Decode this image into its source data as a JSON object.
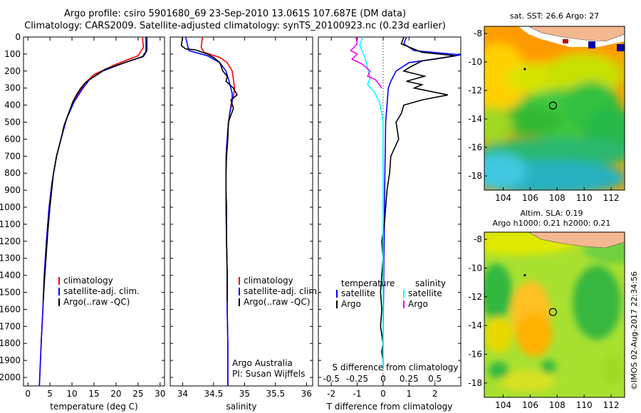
{
  "header": {
    "title_line1": "Argo profile: csiro 5901680_69 23-Sep-2010 13.061S 107.687E (DM data)",
    "title_line2": "Climatology: CARS2009. Satellite-adjusted climatology: synTS_20100923.nc (0.23d earlier)"
  },
  "colors": {
    "climatology": "#ff0000",
    "satellite": "#0000ff",
    "argo": "#000000",
    "argo_salinity": "#ff00ff",
    "satellite_salinity": "#00ffff"
  },
  "watermark": "©IMOS 02-Aug-2017 22:34:56",
  "chart_data": [
    {
      "type": "line",
      "id": "temperature",
      "xlabel": "temperature (deg C)",
      "xlim": [
        -1,
        31
      ],
      "ylim": [
        2050,
        0
      ],
      "xticks": [
        0,
        5,
        10,
        15,
        20,
        25,
        30
      ],
      "yticks": [
        0,
        100,
        200,
        300,
        400,
        500,
        600,
        700,
        800,
        900,
        1000,
        1100,
        1200,
        1300,
        1400,
        1500,
        1600,
        1700,
        1800,
        1900,
        2000
      ],
      "legend": [
        "climatology",
        "satellite-adj. clim.",
        "Argo(..raw -QC)"
      ],
      "series": [
        {
          "name": "climatology",
          "color": "#ff0000",
          "points": [
            [
              26.0,
              0
            ],
            [
              26.2,
              60
            ],
            [
              25.0,
              110
            ],
            [
              20.0,
              160
            ],
            [
              15.0,
              220
            ],
            [
              13.0,
              270
            ],
            [
              11.5,
              330
            ],
            [
              10.0,
              400
            ],
            [
              8.5,
              500
            ],
            [
              7.5,
              600
            ],
            [
              6.5,
              700
            ],
            [
              5.5,
              850
            ],
            [
              4.8,
              1000
            ],
            [
              4.2,
              1200
            ],
            [
              3.7,
              1400
            ],
            [
              3.4,
              1600
            ],
            [
              3.0,
              1800
            ],
            [
              2.6,
              2050
            ]
          ]
        },
        {
          "name": "satellite-adj. clim.",
          "color": "#0000ff",
          "points": [
            [
              27.0,
              0
            ],
            [
              27.0,
              80
            ],
            [
              26.2,
              115
            ],
            [
              22.0,
              150
            ],
            [
              17.0,
              200
            ],
            [
              14.0,
              250
            ],
            [
              12.5,
              300
            ],
            [
              10.5,
              380
            ],
            [
              8.8,
              480
            ],
            [
              7.5,
              600
            ],
            [
              6.5,
              700
            ],
            [
              5.5,
              850
            ],
            [
              4.8,
              1000
            ],
            [
              4.2,
              1200
            ],
            [
              3.7,
              1400
            ],
            [
              3.4,
              1600
            ],
            [
              3.0,
              1800
            ],
            [
              2.6,
              2050
            ]
          ]
        },
        {
          "name": "Argo(..raw -QC)",
          "color": "#000000",
          "points": [
            [
              26.8,
              0
            ],
            [
              26.8,
              85
            ],
            [
              26.0,
              115
            ],
            [
              22.0,
              150
            ],
            [
              17.5,
              190
            ],
            [
              14.5,
              240
            ],
            [
              13.0,
              270
            ],
            [
              12.0,
              300
            ],
            [
              11.0,
              340
            ],
            [
              10.2,
              380
            ],
            [
              9.2,
              450
            ],
            [
              8.2,
              520
            ],
            [
              7.5,
              600
            ],
            [
              6.5,
              700
            ],
            [
              5.8,
              800
            ],
            [
              5.4,
              900
            ],
            [
              5.0,
              1000
            ],
            [
              4.5,
              1150
            ],
            [
              4.1,
              1300
            ],
            [
              3.7,
              1450
            ],
            [
              3.5,
              1550
            ]
          ]
        }
      ]
    },
    {
      "type": "line",
      "id": "salinity",
      "xlabel": "salinity",
      "xlim": [
        33.8,
        36.1
      ],
      "ylim": [
        2050,
        0
      ],
      "xticks": [
        34,
        34.5,
        35,
        35.5,
        36
      ],
      "legend": [
        "climatology",
        "satellite-adj. clim.",
        "Argo(..raw -QC)"
      ],
      "annotation": [
        "Argo Australia",
        "PI: Susan Wijffels"
      ],
      "series": [
        {
          "name": "climatology",
          "color": "#ff0000",
          "points": [
            [
              34.32,
              0
            ],
            [
              34.3,
              60
            ],
            [
              34.35,
              90
            ],
            [
              34.6,
              120
            ],
            [
              34.72,
              150
            ],
            [
              34.8,
              200
            ],
            [
              34.82,
              250
            ],
            [
              34.84,
              300
            ],
            [
              34.82,
              350
            ],
            [
              34.78,
              400
            ],
            [
              34.74,
              500
            ],
            [
              34.72,
              600
            ],
            [
              34.7,
              700
            ],
            [
              34.7,
              800
            ],
            [
              34.7,
              1000
            ],
            [
              34.71,
              1200
            ],
            [
              34.72,
              1400
            ],
            [
              34.72,
              1600
            ],
            [
              34.73,
              1800
            ],
            [
              34.73,
              2050
            ]
          ]
        },
        {
          "name": "satellite-adj. clim.",
          "color": "#0000ff",
          "points": [
            [
              34.05,
              0
            ],
            [
              34.1,
              80
            ],
            [
              34.4,
              110
            ],
            [
              34.6,
              150
            ],
            [
              34.7,
              200
            ],
            [
              34.75,
              260
            ],
            [
              34.8,
              330
            ],
            [
              34.8,
              380
            ],
            [
              34.76,
              450
            ],
            [
              34.73,
              550
            ],
            [
              34.71,
              650
            ],
            [
              34.7,
              800
            ],
            [
              34.7,
              1000
            ],
            [
              34.71,
              1200
            ],
            [
              34.72,
              1400
            ],
            [
              34.72,
              1600
            ],
            [
              34.73,
              1800
            ],
            [
              34.73,
              2050
            ]
          ]
        },
        {
          "name": "Argo(..raw -QC)",
          "color": "#000000",
          "points": [
            [
              34.0,
              0
            ],
            [
              33.98,
              50
            ],
            [
              34.05,
              70
            ],
            [
              34.2,
              75
            ],
            [
              34.4,
              100
            ],
            [
              34.5,
              120
            ],
            [
              34.6,
              150
            ],
            [
              34.65,
              200
            ],
            [
              34.72,
              230
            ],
            [
              34.7,
              260
            ],
            [
              34.82,
              300
            ],
            [
              34.88,
              340
            ],
            [
              34.78,
              370
            ],
            [
              34.82,
              420
            ],
            [
              34.74,
              500
            ],
            [
              34.73,
              600
            ],
            [
              34.71,
              700
            ],
            [
              34.7,
              800
            ],
            [
              34.7,
              900
            ],
            [
              34.71,
              1000
            ],
            [
              34.71,
              1200
            ],
            [
              34.72,
              1400
            ],
            [
              34.72,
              1550
            ]
          ]
        }
      ]
    },
    {
      "type": "line",
      "id": "difference",
      "xlabel": "T difference from climatology",
      "xlabel_top": "S difference from climatology",
      "xlim": [
        -2.5,
        3.0
      ],
      "ylim": [
        2050,
        0
      ],
      "xticks": [
        -2,
        -1,
        0,
        1,
        2
      ],
      "xticks_salinity": [
        -0.5,
        -0.25,
        0,
        0.25,
        0.5
      ],
      "legend_headers": [
        "temperature",
        "salinity"
      ],
      "legend": [
        "satellite",
        "Argo",
        "satellite",
        "Argo"
      ],
      "series": [
        {
          "name": "satellite",
          "color": "#0000ff",
          "points": [
            [
              0.9,
              0
            ],
            [
              0.8,
              40
            ],
            [
              1.2,
              80
            ],
            [
              3.0,
              105
            ],
            [
              2.2,
              125
            ],
            [
              1.0,
              150
            ],
            [
              0.5,
              200
            ],
            [
              0.3,
              260
            ],
            [
              0.2,
              300
            ],
            [
              0.15,
              400
            ],
            [
              0.1,
              500
            ],
            [
              0.08,
              700
            ],
            [
              0.06,
              900
            ],
            [
              0.05,
              1100
            ],
            [
              0.03,
              1300
            ],
            [
              0.02,
              1500
            ],
            [
              0.0,
              1700
            ],
            [
              0.0,
              1950
            ]
          ]
        },
        {
          "name": "Argo",
          "color": "#000000",
          "points": [
            [
              0.8,
              0
            ],
            [
              0.7,
              40
            ],
            [
              1.5,
              90
            ],
            [
              2.8,
              110
            ],
            [
              1.5,
              140
            ],
            [
              1.0,
              180
            ],
            [
              0.8,
              200
            ],
            [
              1.6,
              230
            ],
            [
              0.9,
              260
            ],
            [
              1.5,
              280
            ],
            [
              1.2,
              300
            ],
            [
              2.5,
              340
            ],
            [
              1.5,
              370
            ],
            [
              0.8,
              400
            ],
            [
              0.7,
              450
            ],
            [
              0.5,
              500
            ],
            [
              0.6,
              600
            ],
            [
              0.3,
              700
            ],
            [
              0.25,
              800
            ],
            [
              0.15,
              900
            ],
            [
              0.1,
              1000
            ],
            [
              0.05,
              1100
            ],
            [
              -0.05,
              1200
            ],
            [
              0.0,
              1300
            ],
            [
              -0.05,
              1400
            ],
            [
              -0.1,
              1500
            ],
            [
              -0.05,
              1600
            ],
            [
              -0.1,
              1700
            ],
            [
              0.0,
              1800
            ],
            [
              -0.05,
              1850
            ],
            [
              0.0,
              1900
            ]
          ]
        },
        {
          "name": "satellite",
          "color": "#00ffff",
          "points": [
            [
              -0.8,
              0
            ],
            [
              -0.9,
              50
            ],
            [
              -0.7,
              120
            ],
            [
              -0.6,
              180
            ],
            [
              -0.5,
              240
            ],
            [
              -0.6,
              280
            ],
            [
              -0.35,
              320
            ],
            [
              -0.15,
              380
            ],
            [
              -0.05,
              450
            ],
            [
              0.0,
              500
            ],
            [
              0.0,
              700
            ],
            [
              0.0,
              900
            ],
            [
              0.0,
              1200
            ],
            [
              0.0,
              1500
            ],
            [
              0.0,
              1800
            ],
            [
              0.0,
              1950
            ]
          ]
        },
        {
          "name": "Argo",
          "color": "#ff00ff",
          "points": [
            [
              -1.05,
              0
            ],
            [
              -1.0,
              40
            ],
            [
              -1.25,
              80
            ],
            [
              -1.0,
              100
            ],
            [
              -1.2,
              130
            ],
            [
              -0.8,
              160
            ],
            [
              -0.5,
              200
            ],
            [
              -0.6,
              230
            ],
            [
              -0.3,
              250
            ],
            [
              -0.15,
              280
            ],
            [
              -0.05,
              300
            ]
          ]
        }
      ]
    },
    {
      "type": "heatmap",
      "id": "sst-map",
      "title": "sat. SST: 26.6  Argo: 27",
      "xlim": [
        102.6,
        113
      ],
      "ylim": [
        -19,
        -7.5
      ],
      "xticks": [
        104,
        106,
        108,
        110,
        112
      ],
      "yticks": [
        -8,
        -10,
        -12,
        -14,
        -16,
        -18
      ],
      "argo_position": [
        107.687,
        -13.061
      ]
    },
    {
      "type": "heatmap",
      "id": "sla-map",
      "title": "Altim. SLA: 0.19",
      "subtitle": "Argo h1000: 0.21 h2000: 0.21",
      "xlim": [
        102.6,
        113
      ],
      "ylim": [
        -19,
        -7.5
      ],
      "xticks": [
        104,
        106,
        108,
        110,
        112
      ],
      "yticks": [
        -8,
        -10,
        -12,
        -14,
        -16,
        -18
      ],
      "argo_position": [
        107.687,
        -13.061
      ]
    }
  ]
}
